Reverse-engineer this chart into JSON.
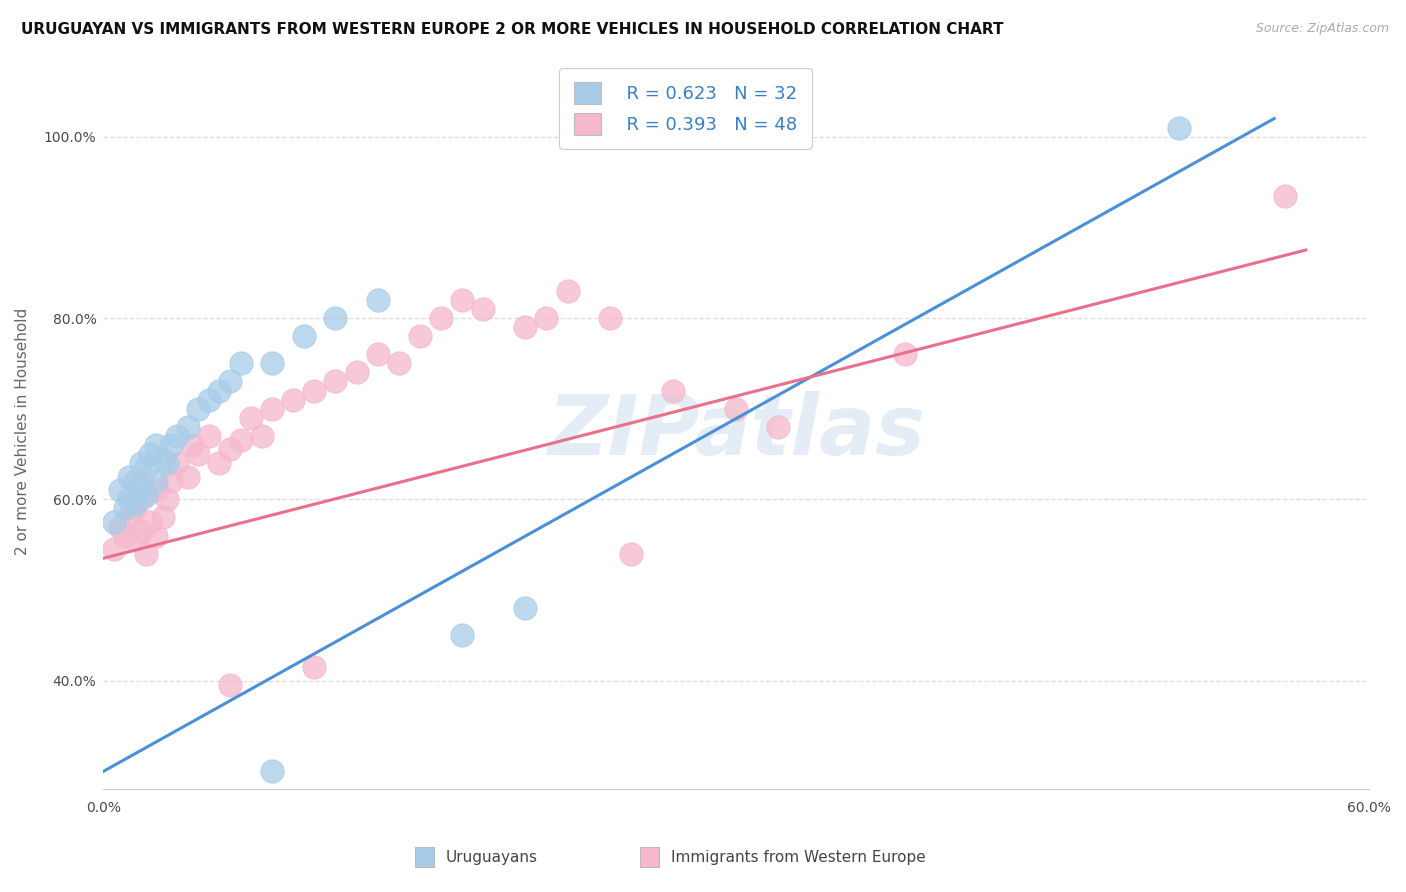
{
  "title": "URUGUAYAN VS IMMIGRANTS FROM WESTERN EUROPE 2 OR MORE VEHICLES IN HOUSEHOLD CORRELATION CHART",
  "source": "Source: ZipAtlas.com",
  "ylabel": "2 or more Vehicles in Household",
  "xlim": [
    0.0,
    0.6
  ],
  "ylim": [
    0.28,
    1.07
  ],
  "x_tick_positions": [
    0.0,
    0.1,
    0.2,
    0.3,
    0.4,
    0.5,
    0.6
  ],
  "x_tick_labels": [
    "0.0%",
    "",
    "",
    "",
    "",
    "",
    "60.0%"
  ],
  "y_ticks": [
    0.4,
    0.6,
    0.8,
    1.0
  ],
  "y_tick_labels": [
    "40.0%",
    "60.0%",
    "80.0%",
    "100.0%"
  ],
  "blue_color": "#a8cce8",
  "pink_color": "#f5b8cc",
  "blue_line_color": "#4a90d9",
  "pink_line_color": "#e8708a",
  "blue_R": "R = 0.623",
  "blue_N": "N = 32",
  "pink_R": "R = 0.393",
  "pink_N": "N = 48",
  "legend_label1": "Uruguayans",
  "legend_label2": "Immigrants from Western Europe",
  "blue_line_x0": 0.0,
  "blue_line_y0": 0.3,
  "blue_line_x1": 0.555,
  "blue_line_y1": 1.02,
  "pink_line_x0": 0.0,
  "pink_line_y0": 0.535,
  "pink_line_x1": 0.57,
  "pink_line_y1": 0.875,
  "watermark": "ZIPatlas",
  "grid_color": "#dddddd",
  "background_color": "#ffffff",
  "title_fontsize": 11,
  "axis_label_fontsize": 11,
  "tick_fontsize": 10,
  "legend_fontsize": 13,
  "blue_x": [
    0.005,
    0.008,
    0.01,
    0.012,
    0.012,
    0.015,
    0.015,
    0.018,
    0.018,
    0.02,
    0.02,
    0.022,
    0.025,
    0.025,
    0.028,
    0.03,
    0.032,
    0.035,
    0.04,
    0.045,
    0.05,
    0.055,
    0.06,
    0.065,
    0.08,
    0.095,
    0.11,
    0.13,
    0.17,
    0.2,
    0.51,
    0.08
  ],
  "blue_y": [
    0.575,
    0.61,
    0.59,
    0.6,
    0.625,
    0.595,
    0.62,
    0.615,
    0.64,
    0.605,
    0.635,
    0.65,
    0.62,
    0.66,
    0.645,
    0.64,
    0.66,
    0.67,
    0.68,
    0.7,
    0.71,
    0.72,
    0.73,
    0.75,
    0.75,
    0.78,
    0.8,
    0.82,
    0.45,
    0.48,
    1.01,
    0.3
  ],
  "pink_x": [
    0.005,
    0.008,
    0.01,
    0.012,
    0.015,
    0.015,
    0.018,
    0.018,
    0.02,
    0.022,
    0.025,
    0.025,
    0.028,
    0.03,
    0.032,
    0.035,
    0.04,
    0.042,
    0.045,
    0.05,
    0.055,
    0.06,
    0.065,
    0.07,
    0.075,
    0.08,
    0.09,
    0.1,
    0.11,
    0.12,
    0.13,
    0.14,
    0.15,
    0.16,
    0.17,
    0.18,
    0.2,
    0.21,
    0.22,
    0.24,
    0.27,
    0.3,
    0.32,
    0.38,
    0.56,
    0.1,
    0.25,
    0.06
  ],
  "pink_y": [
    0.545,
    0.57,
    0.56,
    0.58,
    0.555,
    0.59,
    0.565,
    0.6,
    0.54,
    0.575,
    0.56,
    0.61,
    0.58,
    0.6,
    0.62,
    0.64,
    0.625,
    0.66,
    0.65,
    0.67,
    0.64,
    0.655,
    0.665,
    0.69,
    0.67,
    0.7,
    0.71,
    0.72,
    0.73,
    0.74,
    0.76,
    0.75,
    0.78,
    0.8,
    0.82,
    0.81,
    0.79,
    0.8,
    0.83,
    0.8,
    0.72,
    0.7,
    0.68,
    0.76,
    0.935,
    0.415,
    0.54,
    0.395
  ]
}
